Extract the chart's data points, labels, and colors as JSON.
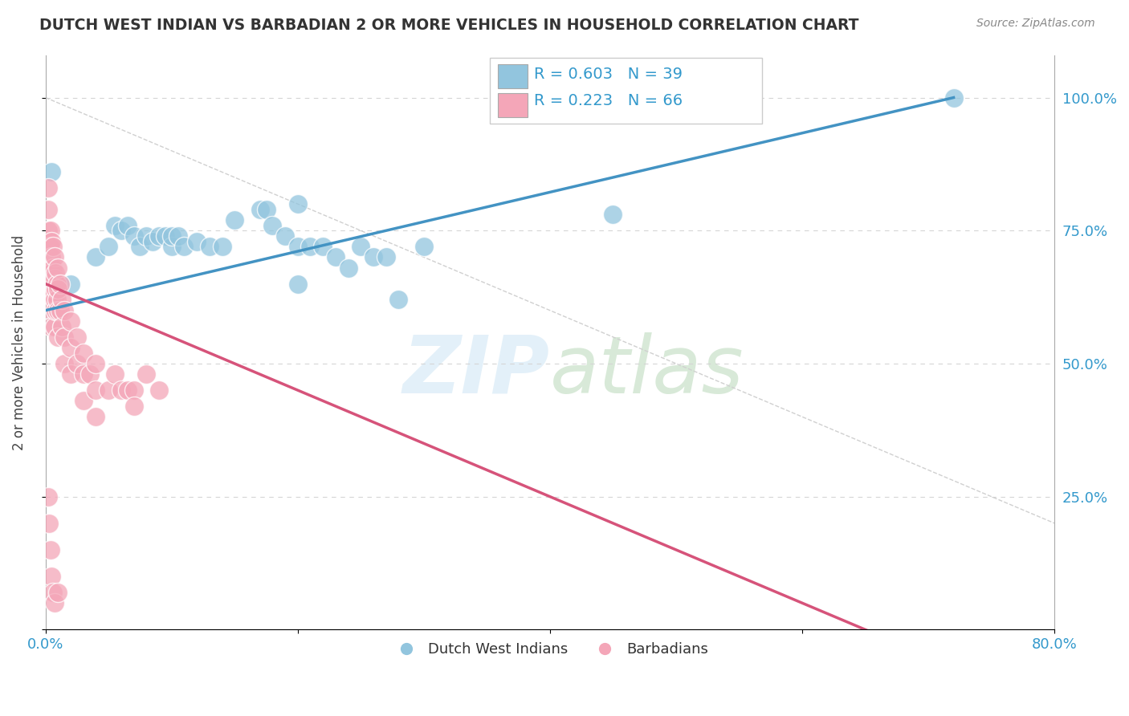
{
  "title": "DUTCH WEST INDIAN VS BARBADIAN 2 OR MORE VEHICLES IN HOUSEHOLD CORRELATION CHART",
  "source_text": "Source: ZipAtlas.com",
  "ylabel": "2 or more Vehicles in Household",
  "xlim": [
    0.0,
    0.8
  ],
  "ylim": [
    0.0,
    1.08
  ],
  "legend1_r": "R = 0.603",
  "legend1_n": "N = 39",
  "legend2_r": "R = 0.223",
  "legend2_n": "N = 66",
  "blue_color": "#92c5de",
  "pink_color": "#f4a6b8",
  "blue_line_color": "#4393c3",
  "pink_line_color": "#d6537a",
  "ref_line_color": "#d0d0d0",
  "grid_color": "#d5d5d5",
  "blue_line_x0": 0.0,
  "blue_line_y0": 0.6,
  "blue_line_x1": 0.72,
  "blue_line_y1": 1.0,
  "pink_line_x0": 0.0,
  "pink_line_y0": 0.65,
  "pink_line_x1": 0.09,
  "pink_line_y1": 0.58,
  "blue_points_x": [
    0.005,
    0.04,
    0.05,
    0.055,
    0.06,
    0.065,
    0.07,
    0.075,
    0.08,
    0.085,
    0.09,
    0.095,
    0.1,
    0.1,
    0.105,
    0.11,
    0.12,
    0.13,
    0.14,
    0.15,
    0.17,
    0.175,
    0.18,
    0.19,
    0.2,
    0.21,
    0.22,
    0.23,
    0.24,
    0.25,
    0.26,
    0.27,
    0.28,
    0.3,
    0.2,
    0.45,
    0.2,
    0.02,
    0.72
  ],
  "blue_points_y": [
    0.86,
    0.7,
    0.72,
    0.76,
    0.75,
    0.76,
    0.74,
    0.72,
    0.74,
    0.73,
    0.74,
    0.74,
    0.72,
    0.74,
    0.74,
    0.72,
    0.73,
    0.72,
    0.72,
    0.77,
    0.79,
    0.79,
    0.76,
    0.74,
    0.72,
    0.72,
    0.72,
    0.7,
    0.68,
    0.72,
    0.7,
    0.7,
    0.62,
    0.72,
    0.65,
    0.78,
    0.8,
    0.65,
    1.0
  ],
  "pink_points_x": [
    0.002,
    0.002,
    0.002,
    0.003,
    0.003,
    0.003,
    0.004,
    0.004,
    0.004,
    0.004,
    0.005,
    0.005,
    0.005,
    0.005,
    0.005,
    0.005,
    0.006,
    0.006,
    0.006,
    0.007,
    0.007,
    0.007,
    0.007,
    0.008,
    0.008,
    0.008,
    0.009,
    0.009,
    0.01,
    0.01,
    0.01,
    0.01,
    0.012,
    0.012,
    0.013,
    0.013,
    0.015,
    0.015,
    0.015,
    0.02,
    0.02,
    0.02,
    0.025,
    0.025,
    0.03,
    0.03,
    0.03,
    0.035,
    0.04,
    0.04,
    0.04,
    0.05,
    0.055,
    0.06,
    0.065,
    0.07,
    0.07,
    0.08,
    0.09,
    0.002,
    0.003,
    0.004,
    0.005,
    0.006,
    0.007,
    0.01
  ],
  "pink_points_y": [
    0.83,
    0.79,
    0.75,
    0.72,
    0.68,
    0.65,
    0.75,
    0.72,
    0.68,
    0.63,
    0.73,
    0.7,
    0.67,
    0.63,
    0.6,
    0.57,
    0.72,
    0.68,
    0.63,
    0.7,
    0.66,
    0.62,
    0.57,
    0.67,
    0.64,
    0.6,
    0.65,
    0.62,
    0.68,
    0.64,
    0.6,
    0.55,
    0.65,
    0.6,
    0.62,
    0.57,
    0.6,
    0.55,
    0.5,
    0.58,
    0.53,
    0.48,
    0.55,
    0.5,
    0.52,
    0.48,
    0.43,
    0.48,
    0.5,
    0.45,
    0.4,
    0.45,
    0.48,
    0.45,
    0.45,
    0.45,
    0.42,
    0.48,
    0.45,
    0.25,
    0.2,
    0.15,
    0.1,
    0.07,
    0.05,
    0.07
  ]
}
